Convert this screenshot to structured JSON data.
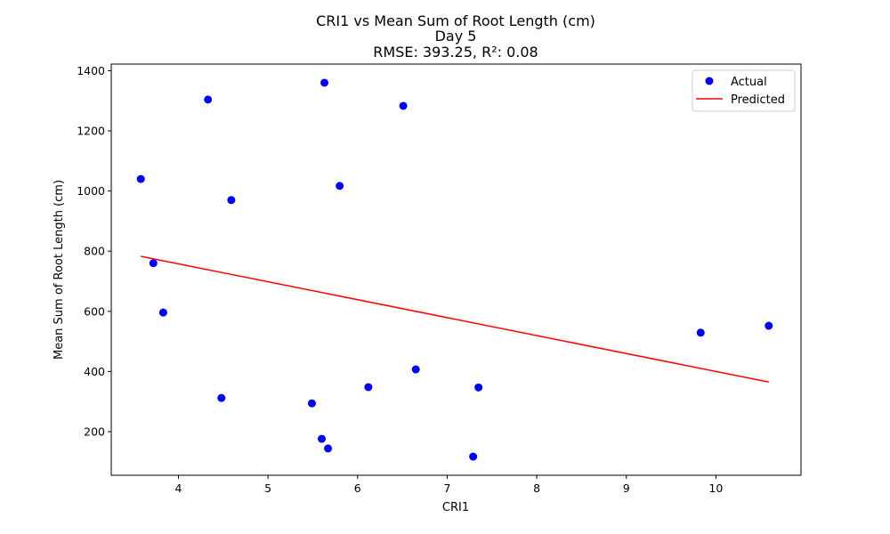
{
  "chart_data": {
    "type": "scatter",
    "title_lines": [
      "CRI1 vs Mean Sum of Root Length (cm)",
      "Day 5",
      "RMSE: 393.25, R²: 0.08"
    ],
    "xlabel": "CRI1",
    "ylabel": "Mean Sum of Root Length (cm)",
    "xlim": [
      3.25,
      10.95
    ],
    "ylim": [
      55,
      1422
    ],
    "xticks": [
      4,
      5,
      6,
      7,
      8,
      9,
      10
    ],
    "yticks": [
      200,
      400,
      600,
      800,
      1000,
      1200,
      1400
    ],
    "grid": false,
    "legend_position": "top-right",
    "series": [
      {
        "name": "Actual",
        "kind": "scatter",
        "color": "#0000ff",
        "points": [
          {
            "x": 3.58,
            "y": 1040
          },
          {
            "x": 3.72,
            "y": 760
          },
          {
            "x": 3.83,
            "y": 596
          },
          {
            "x": 4.33,
            "y": 1304
          },
          {
            "x": 4.48,
            "y": 312
          },
          {
            "x": 4.59,
            "y": 970
          },
          {
            "x": 5.49,
            "y": 294
          },
          {
            "x": 5.6,
            "y": 176
          },
          {
            "x": 5.63,
            "y": 1360
          },
          {
            "x": 5.67,
            "y": 144
          },
          {
            "x": 5.8,
            "y": 1017
          },
          {
            "x": 6.12,
            "y": 348
          },
          {
            "x": 6.51,
            "y": 1283
          },
          {
            "x": 6.65,
            "y": 407
          },
          {
            "x": 7.29,
            "y": 117
          },
          {
            "x": 7.35,
            "y": 347
          },
          {
            "x": 9.83,
            "y": 529
          },
          {
            "x": 10.59,
            "y": 552
          }
        ]
      },
      {
        "name": "Predicted",
        "kind": "line",
        "color": "#ff0000",
        "points": [
          {
            "x": 3.58,
            "y": 783
          },
          {
            "x": 10.59,
            "y": 365
          }
        ]
      }
    ]
  }
}
